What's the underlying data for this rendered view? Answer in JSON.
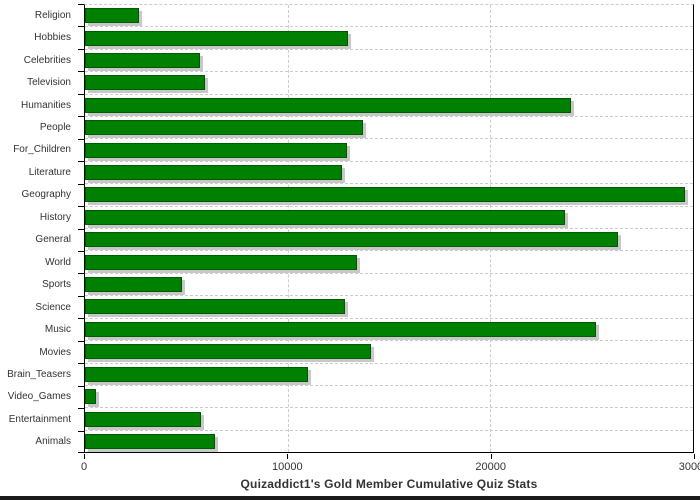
{
  "chart_data": {
    "type": "bar",
    "orientation": "horizontal",
    "title": "Quizaddict1's Gold Member Cumulative Quiz Stats",
    "categories": [
      "Religion",
      "Hobbies",
      "Celebrities",
      "Television",
      "Humanities",
      "People",
      "For_Children",
      "Literature",
      "Geography",
      "History",
      "General",
      "World",
      "Sports",
      "Science",
      "Music",
      "Movies",
      "Brain_Teasers",
      "Video_Games",
      "Entertainment",
      "Animals"
    ],
    "values": [
      2650,
      13000,
      5650,
      5900,
      24000,
      13700,
      12950,
      12700,
      29600,
      23700,
      26300,
      13400,
      4800,
      12850,
      25200,
      14100,
      11000,
      550,
      5700,
      6400
    ],
    "xlabel": "",
    "ylabel": "",
    "xlim": [
      0,
      30000
    ],
    "x_ticks": [
      0,
      10000,
      20000,
      30000
    ],
    "x_tick_labels": [
      "0",
      "10000",
      "20000",
      "30000"
    ],
    "gridlines_v_at": [
      10000,
      20000
    ],
    "grid": true,
    "legend_position": "none",
    "bar_color": "#008000",
    "bar_border_color": "#005a00",
    "shadow_color": "#c8c8c8",
    "gridline_color": "#cccccc",
    "title_position": "bottom"
  }
}
